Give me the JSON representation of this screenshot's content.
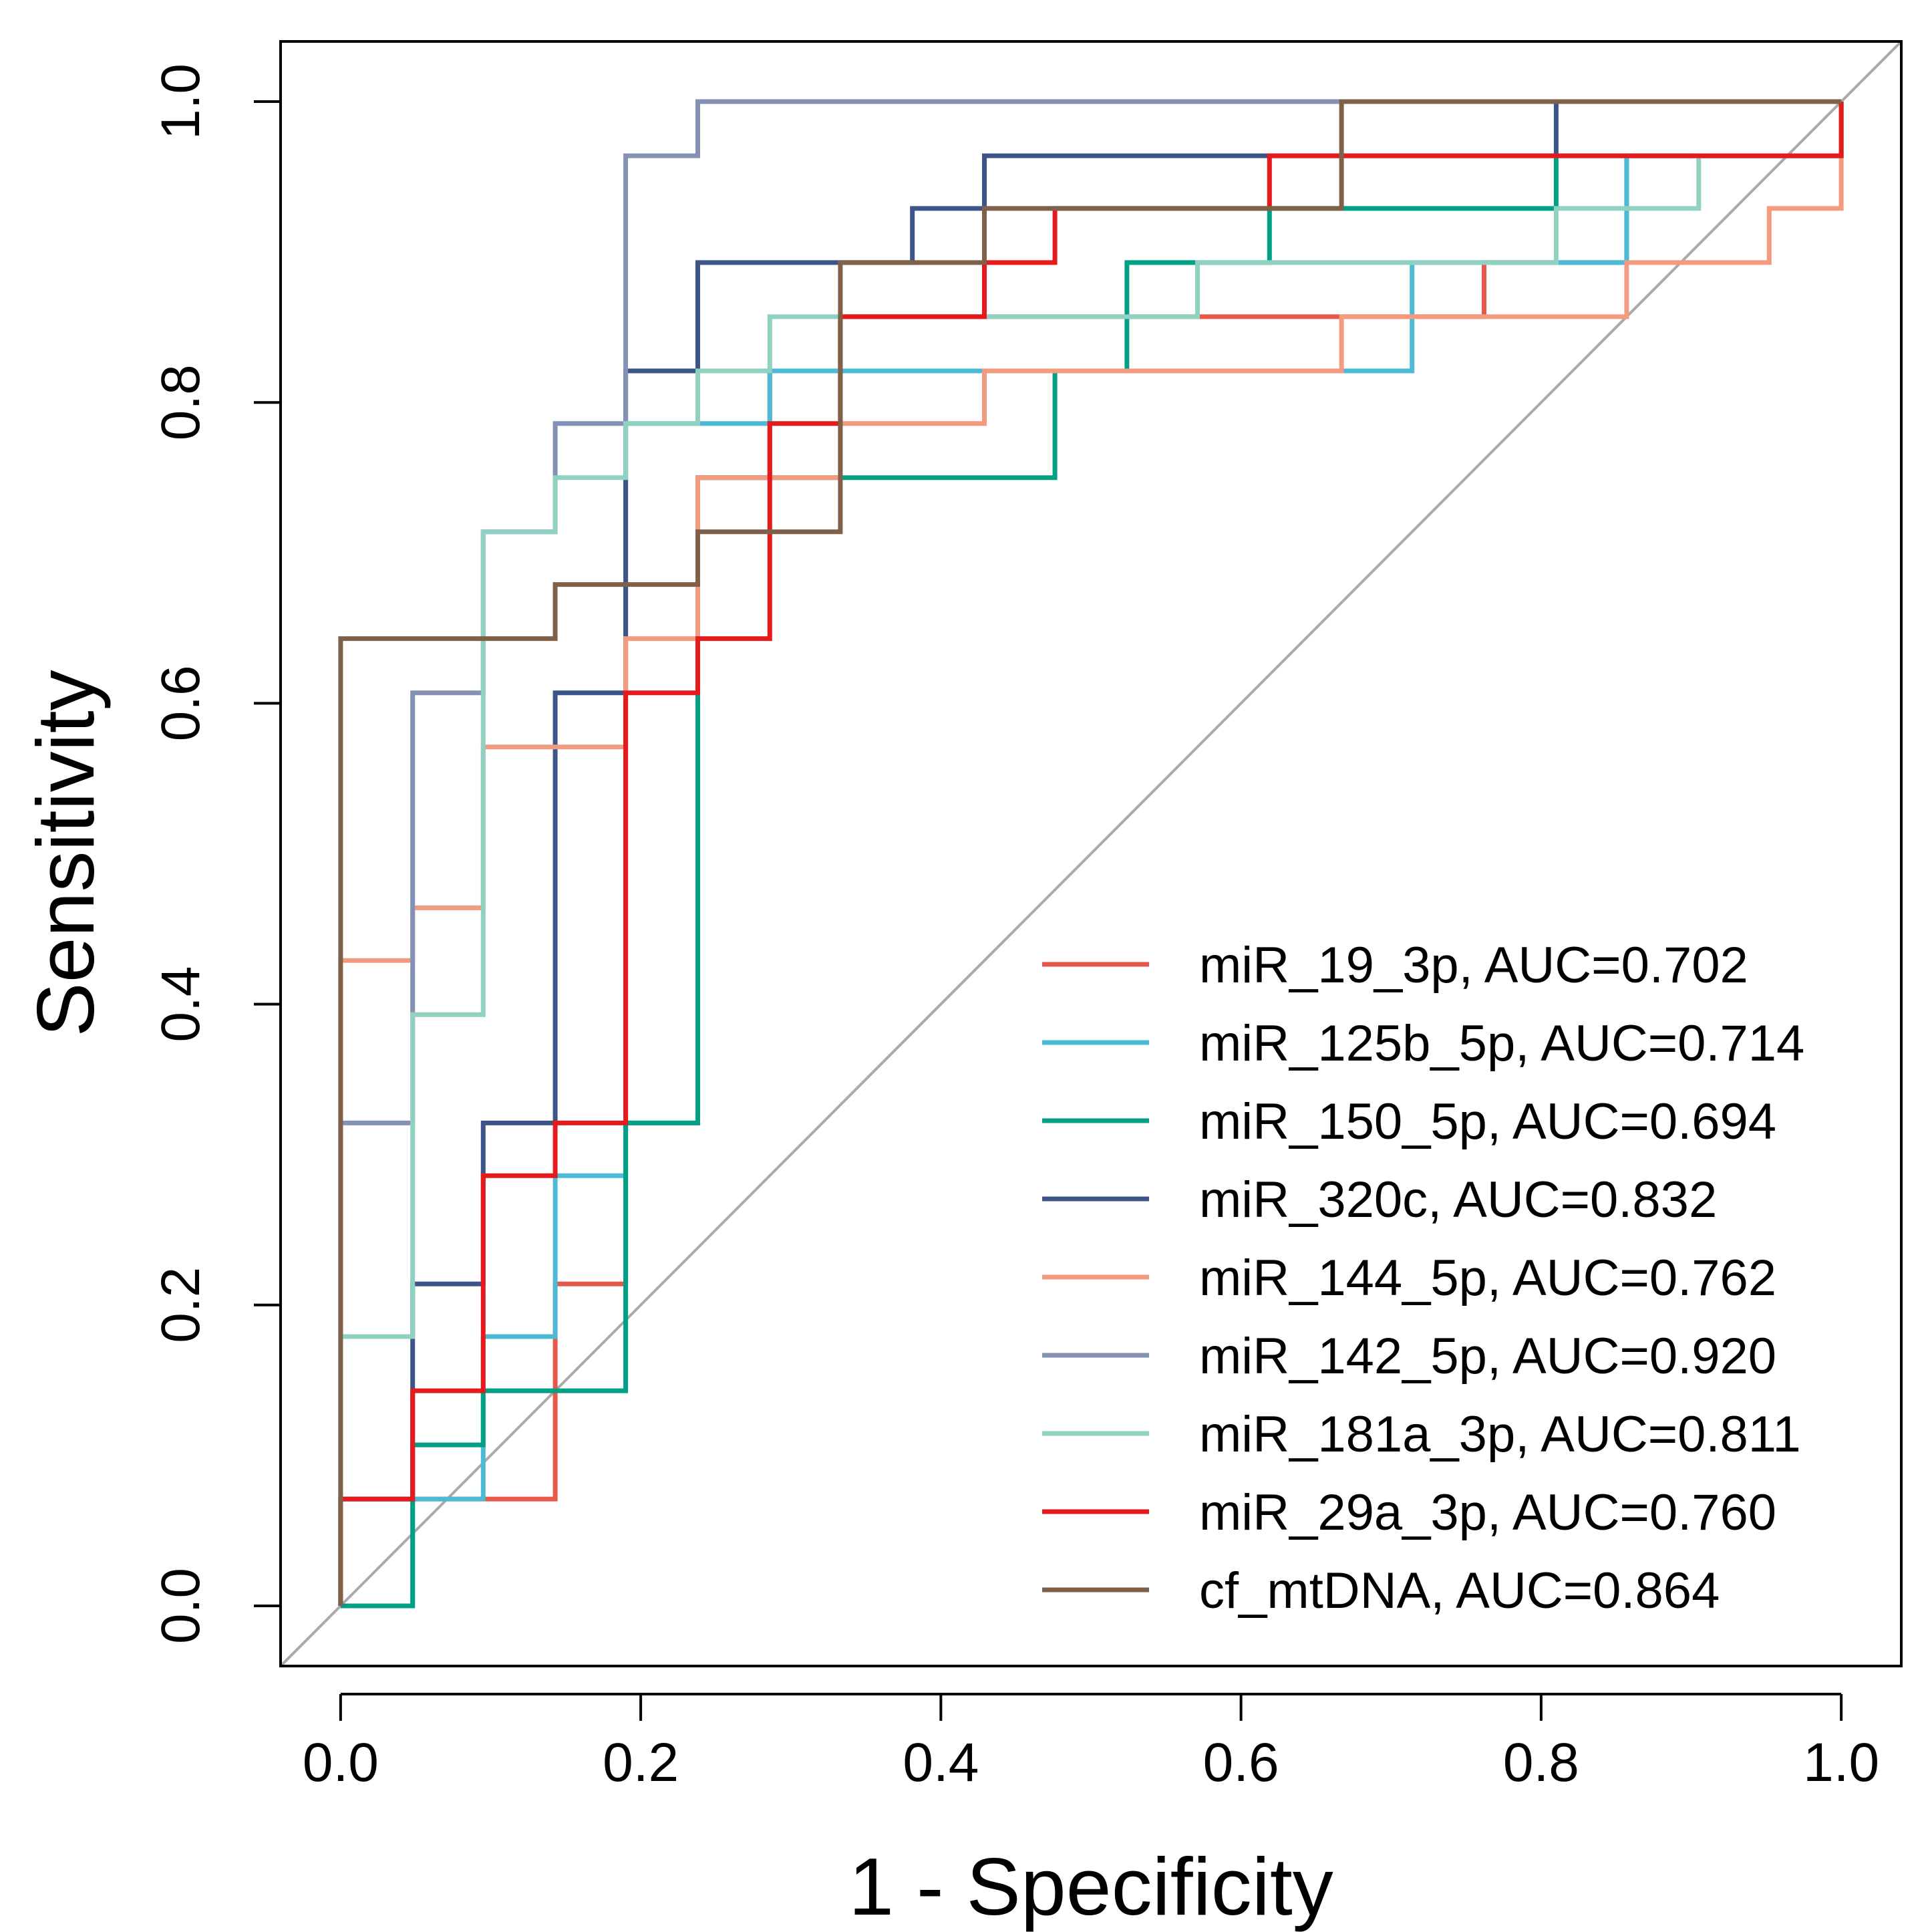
{
  "chart_data": {
    "type": "line",
    "title": "",
    "xlabel": "1 -  Specificity",
    "ylabel": "Sensitivity",
    "xlim": [
      -0.04,
      1.04
    ],
    "ylim": [
      -0.04,
      1.04
    ],
    "xticks": [
      "0.0",
      "0.2",
      "0.4",
      "0.6",
      "0.8",
      "1.0"
    ],
    "yticks": [
      "0.0",
      "0.2",
      "0.4",
      "0.6",
      "0.8",
      "1.0"
    ],
    "diagonal_color": "#aaaaaa",
    "legend_position": "bottom-right",
    "series": [
      {
        "name": "miR_19_3p, AUC=0.702",
        "color": "#e8584a",
        "points": [
          [
            0,
            0
          ],
          [
            0,
            0.071
          ],
          [
            0.143,
            0.071
          ],
          [
            0.143,
            0.214
          ],
          [
            0.19,
            0.214
          ],
          [
            0.19,
            0.321
          ],
          [
            0.238,
            0.321
          ],
          [
            0.238,
            0.607
          ],
          [
            0.238,
            0.75
          ],
          [
            0.286,
            0.75
          ],
          [
            0.286,
            0.821
          ],
          [
            0.333,
            0.821
          ],
          [
            0.333,
            0.857
          ],
          [
            0.476,
            0.857
          ],
          [
            0.476,
            0.857
          ],
          [
            0.571,
            0.857
          ],
          [
            0.667,
            0.857
          ],
          [
            0.762,
            0.857
          ],
          [
            0.762,
            0.893
          ],
          [
            0.857,
            0.893
          ],
          [
            0.857,
            0.964
          ],
          [
            1,
            0.964
          ],
          [
            1,
            1
          ]
        ]
      },
      {
        "name": "miR_125b_5p, AUC=0.714",
        "color": "#4dbbd5",
        "points": [
          [
            0,
            0
          ],
          [
            0.048,
            0
          ],
          [
            0.048,
            0.071
          ],
          [
            0.095,
            0.071
          ],
          [
            0.095,
            0.179
          ],
          [
            0.143,
            0.179
          ],
          [
            0.143,
            0.286
          ],
          [
            0.19,
            0.286
          ],
          [
            0.19,
            0.786
          ],
          [
            0.286,
            0.786
          ],
          [
            0.286,
            0.821
          ],
          [
            0.667,
            0.821
          ],
          [
            0.714,
            0.821
          ],
          [
            0.714,
            0.893
          ],
          [
            0.857,
            0.893
          ],
          [
            0.857,
            0.964
          ],
          [
            1,
            0.964
          ],
          [
            1,
            1
          ]
        ]
      },
      {
        "name": "miR_150_5p, AUC=0.694",
        "color": "#00a087",
        "points": [
          [
            0,
            0
          ],
          [
            0.048,
            0
          ],
          [
            0.048,
            0.107
          ],
          [
            0.095,
            0.107
          ],
          [
            0.095,
            0.143
          ],
          [
            0.19,
            0.143
          ],
          [
            0.19,
            0.321
          ],
          [
            0.238,
            0.321
          ],
          [
            0.238,
            0.607
          ],
          [
            0.238,
            0.75
          ],
          [
            0.476,
            0.75
          ],
          [
            0.476,
            0.821
          ],
          [
            0.524,
            0.821
          ],
          [
            0.524,
            0.893
          ],
          [
            0.619,
            0.893
          ],
          [
            0.619,
            0.929
          ],
          [
            0.81,
            0.929
          ],
          [
            0.81,
            0.964
          ],
          [
            1,
            0.964
          ],
          [
            1,
            1
          ]
        ]
      },
      {
        "name": "miR_320c, AUC=0.832",
        "color": "#3c5488",
        "points": [
          [
            0,
            0
          ],
          [
            0,
            0.071
          ],
          [
            0.048,
            0.071
          ],
          [
            0.048,
            0.214
          ],
          [
            0.095,
            0.214
          ],
          [
            0.095,
            0.321
          ],
          [
            0.143,
            0.321
          ],
          [
            0.143,
            0.607
          ],
          [
            0.19,
            0.607
          ],
          [
            0.19,
            0.821
          ],
          [
            0.238,
            0.821
          ],
          [
            0.238,
            0.893
          ],
          [
            0.381,
            0.893
          ],
          [
            0.381,
            0.929
          ],
          [
            0.429,
            0.929
          ],
          [
            0.429,
            0.964
          ],
          [
            0.81,
            0.964
          ],
          [
            0.81,
            1
          ],
          [
            1,
            1
          ]
        ]
      },
      {
        "name": "miR_144_5p, AUC=0.762",
        "color": "#f39b7f",
        "points": [
          [
            0,
            0
          ],
          [
            0,
            0.429
          ],
          [
            0.048,
            0.429
          ],
          [
            0.048,
            0.464
          ],
          [
            0.095,
            0.464
          ],
          [
            0.095,
            0.571
          ],
          [
            0.19,
            0.571
          ],
          [
            0.19,
            0.643
          ],
          [
            0.238,
            0.643
          ],
          [
            0.238,
            0.75
          ],
          [
            0.333,
            0.75
          ],
          [
            0.333,
            0.786
          ],
          [
            0.429,
            0.786
          ],
          [
            0.429,
            0.821
          ],
          [
            0.667,
            0.821
          ],
          [
            0.667,
            0.857
          ],
          [
            0.857,
            0.857
          ],
          [
            0.857,
            0.893
          ],
          [
            0.952,
            0.893
          ],
          [
            0.952,
            0.929
          ],
          [
            1,
            0.929
          ],
          [
            1,
            1
          ]
        ]
      },
      {
        "name": "miR_142_5p, AUC=0.920",
        "color": "#8491b4",
        "points": [
          [
            0,
            0
          ],
          [
            0,
            0.321
          ],
          [
            0.048,
            0.321
          ],
          [
            0.048,
            0.607
          ],
          [
            0.095,
            0.607
          ],
          [
            0.095,
            0.714
          ],
          [
            0.143,
            0.714
          ],
          [
            0.143,
            0.786
          ],
          [
            0.19,
            0.786
          ],
          [
            0.19,
            0.964
          ],
          [
            0.238,
            0.964
          ],
          [
            0.238,
            1
          ],
          [
            1,
            1
          ]
        ]
      },
      {
        "name": "miR_181a_3p, AUC=0.811",
        "color": "#91d1c2",
        "points": [
          [
            0,
            0
          ],
          [
            0,
            0.179
          ],
          [
            0.048,
            0.179
          ],
          [
            0.048,
            0.393
          ],
          [
            0.095,
            0.393
          ],
          [
            0.095,
            0.714
          ],
          [
            0.143,
            0.714
          ],
          [
            0.143,
            0.75
          ],
          [
            0.19,
            0.75
          ],
          [
            0.19,
            0.786
          ],
          [
            0.238,
            0.786
          ],
          [
            0.238,
            0.821
          ],
          [
            0.286,
            0.821
          ],
          [
            0.286,
            0.857
          ],
          [
            0.571,
            0.857
          ],
          [
            0.571,
            0.893
          ],
          [
            0.81,
            0.893
          ],
          [
            0.81,
            0.929
          ],
          [
            0.905,
            0.929
          ],
          [
            0.905,
            0.964
          ],
          [
            1,
            0.964
          ],
          [
            1,
            1
          ]
        ]
      },
      {
        "name": "miR_29a_3p, AUC=0.760",
        "color": "#e41a1c",
        "points": [
          [
            0,
            0
          ],
          [
            0,
            0.071
          ],
          [
            0.048,
            0.071
          ],
          [
            0.048,
            0.143
          ],
          [
            0.095,
            0.143
          ],
          [
            0.095,
            0.286
          ],
          [
            0.143,
            0.286
          ],
          [
            0.143,
            0.321
          ],
          [
            0.19,
            0.321
          ],
          [
            0.19,
            0.607
          ],
          [
            0.238,
            0.607
          ],
          [
            0.238,
            0.643
          ],
          [
            0.286,
            0.643
          ],
          [
            0.286,
            0.786
          ],
          [
            0.333,
            0.786
          ],
          [
            0.333,
            0.857
          ],
          [
            0.429,
            0.857
          ],
          [
            0.429,
            0.893
          ],
          [
            0.476,
            0.893
          ],
          [
            0.476,
            0.929
          ],
          [
            0.619,
            0.929
          ],
          [
            0.619,
            0.964
          ],
          [
            1,
            0.964
          ],
          [
            1,
            1
          ]
        ]
      },
      {
        "name": "cf_mtDNA, AUC=0.864",
        "color": "#7e6148",
        "points": [
          [
            0,
            0
          ],
          [
            0,
            0.643
          ],
          [
            0.143,
            0.643
          ],
          [
            0.143,
            0.679
          ],
          [
            0.238,
            0.679
          ],
          [
            0.238,
            0.714
          ],
          [
            0.333,
            0.714
          ],
          [
            0.333,
            0.893
          ],
          [
            0.429,
            0.893
          ],
          [
            0.429,
            0.929
          ],
          [
            0.667,
            0.929
          ],
          [
            0.667,
            1
          ],
          [
            1,
            1
          ]
        ]
      }
    ]
  }
}
